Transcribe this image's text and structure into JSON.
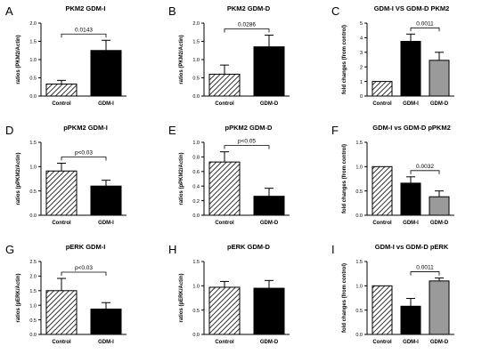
{
  "figure": {
    "background": "#ffffff",
    "bar_black": "#000000",
    "bar_gray": "#9a9a9a",
    "hatch": "diagonal"
  },
  "chart_data": [
    {
      "panel": "A",
      "title": "PKM2 GDM-I",
      "type": "bar",
      "ylabel": "ratios (PKM2/Actin)",
      "categories": [
        "Control",
        "GDM-I"
      ],
      "values": [
        0.33,
        1.25
      ],
      "errors": [
        0.1,
        0.28
      ],
      "fills": [
        "hatch",
        "black"
      ],
      "ylim": [
        0,
        2
      ],
      "yticks": [
        "0.0",
        "0.5",
        "1.0",
        "1.5",
        "2.0"
      ],
      "annotations": [
        {
          "text": "0.0143",
          "from": 0,
          "to": 1
        }
      ]
    },
    {
      "panel": "B",
      "title": "PKM2 GDM-D",
      "type": "bar",
      "ylabel": "ratios (PKM2/Actin)",
      "categories": [
        "Control",
        "GDM-D"
      ],
      "values": [
        0.6,
        1.35
      ],
      "errors": [
        0.25,
        0.32
      ],
      "fills": [
        "hatch",
        "black"
      ],
      "ylim": [
        0,
        2
      ],
      "yticks": [
        "0.0",
        "0.5",
        "1.0",
        "1.5",
        "2.0"
      ],
      "annotations": [
        {
          "text": "0.0286",
          "from": 0,
          "to": 1
        }
      ]
    },
    {
      "panel": "C",
      "title": "GDM-I VS GDM-D PKM2",
      "type": "bar",
      "ylabel": "fold changes (from control)",
      "categories": [
        "Control",
        "GDM-I",
        "GDM-D"
      ],
      "values": [
        1.0,
        3.75,
        2.45
      ],
      "errors": [
        0.0,
        0.5,
        0.55
      ],
      "fills": [
        "hatch",
        "black",
        "gray"
      ],
      "ylim": [
        0,
        5
      ],
      "yticks": [
        "0",
        "1",
        "2",
        "3",
        "4",
        "5"
      ],
      "annotations": [
        {
          "text": "0.0011",
          "from": 1,
          "to": 2
        }
      ]
    },
    {
      "panel": "D",
      "title": "pPKM2 GDM-I",
      "type": "bar",
      "ylabel": "ratios (pPKM2/Actin)",
      "categories": [
        "Control",
        "GDM-I"
      ],
      "values": [
        0.91,
        0.6
      ],
      "errors": [
        0.16,
        0.12
      ],
      "fills": [
        "hatch",
        "black"
      ],
      "ylim": [
        0,
        1.5
      ],
      "yticks": [
        "0.0",
        "0.5",
        "1.0",
        "1.5"
      ],
      "annotations": [
        {
          "text": "p<0.03",
          "from": 0,
          "to": 1
        }
      ]
    },
    {
      "panel": "E",
      "title": "pPKM2 GDM-D",
      "type": "bar",
      "ylabel": "ratios (pPKM2/Actin)",
      "categories": [
        "Control",
        "GDM-D"
      ],
      "values": [
        0.73,
        0.26
      ],
      "errors": [
        0.14,
        0.11
      ],
      "fills": [
        "hatch",
        "black"
      ],
      "ylim": [
        0,
        1.0
      ],
      "yticks": [
        "0.0",
        "0.2",
        "0.4",
        "0.6",
        "0.8",
        "1.0"
      ],
      "annotations": [
        {
          "text": "p<0.05",
          "from": 0,
          "to": 1
        }
      ]
    },
    {
      "panel": "F",
      "title": "GDM-I vs GDM-D pPKM2",
      "type": "bar",
      "ylabel": "fold changes (from control)",
      "categories": [
        "Control",
        "GDM-I",
        "GDM-D"
      ],
      "values": [
        1.0,
        0.66,
        0.38
      ],
      "errors": [
        0.0,
        0.13,
        0.12
      ],
      "fills": [
        "hatch",
        "black",
        "gray"
      ],
      "ylim": [
        0,
        1.5
      ],
      "yticks": [
        "0.0",
        "0.5",
        "1.0",
        "1.5"
      ],
      "annotations": [
        {
          "text": "0.0032",
          "from": 1,
          "to": 2
        }
      ]
    },
    {
      "panel": "G",
      "title": "pERK GDM-I",
      "type": "bar",
      "ylabel": "ratios (pERK/Actin)",
      "categories": [
        "Control",
        "GDM-I"
      ],
      "values": [
        1.5,
        0.87
      ],
      "errors": [
        0.42,
        0.22
      ],
      "fills": [
        "hatch",
        "black"
      ],
      "ylim": [
        0,
        2.5
      ],
      "yticks": [
        "0.0",
        "0.5",
        "1.0",
        "1.5",
        "2.0",
        "2.5"
      ],
      "annotations": [
        {
          "text": "p<0.03",
          "from": 0,
          "to": 1
        }
      ]
    },
    {
      "panel": "H",
      "title": "pERK GDM-D",
      "type": "bar",
      "ylabel": "ratios (pERK/Actin)",
      "categories": [
        "Control",
        "GDM-D"
      ],
      "values": [
        0.97,
        0.95
      ],
      "errors": [
        0.12,
        0.16
      ],
      "fills": [
        "hatch",
        "black"
      ],
      "ylim": [
        0,
        1.5
      ],
      "yticks": [
        "0.0",
        "0.5",
        "1.0",
        "1.5"
      ],
      "annotations": []
    },
    {
      "panel": "I",
      "title": "GDM-I vs GDM-D pERK",
      "type": "bar",
      "ylabel": "fold changes (from control)",
      "categories": [
        "Control",
        "GDM-I",
        "GDM-D"
      ],
      "values": [
        1.0,
        0.58,
        1.1
      ],
      "errors": [
        0.0,
        0.16,
        0.06
      ],
      "fills": [
        "hatch",
        "black",
        "gray"
      ],
      "ylim": [
        0,
        1.5
      ],
      "yticks": [
        "0.0",
        "0.5",
        "1.0",
        "1.5"
      ],
      "annotations": [
        {
          "text": "0.0011",
          "from": 1,
          "to": 2
        }
      ]
    }
  ]
}
